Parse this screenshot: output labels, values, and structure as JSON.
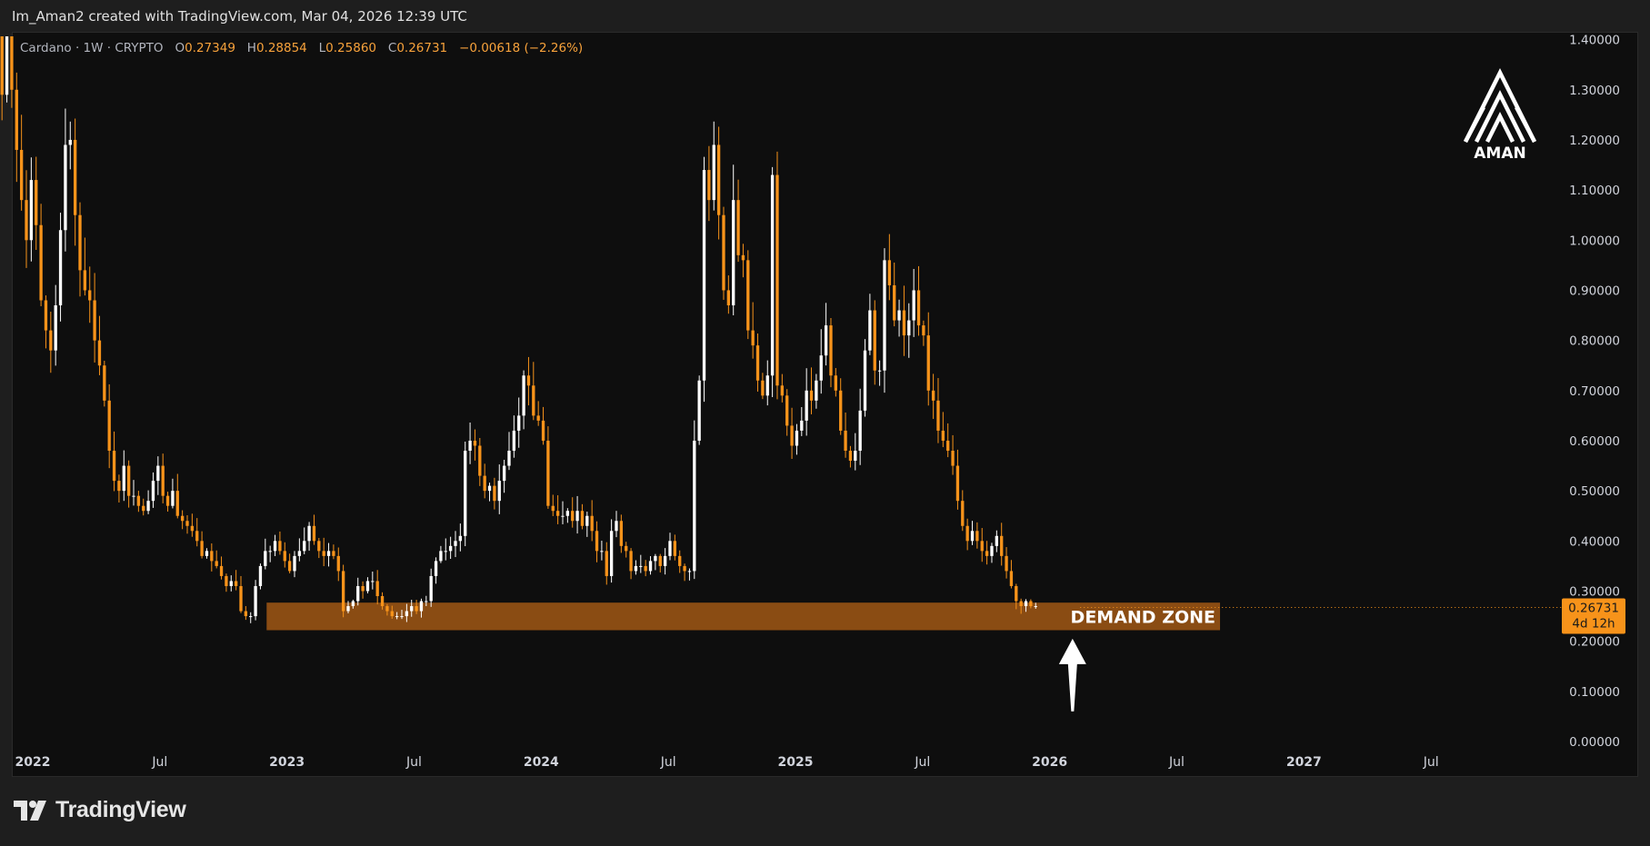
{
  "header": {
    "text": "Im_Aman2 created with TradingView.com, Mar 04, 2026 12:39 UTC"
  },
  "legend": {
    "symbol": "Cardano · 1W · CRYPTO",
    "o_label": "O",
    "o_value": "0.27349",
    "h_label": "H",
    "h_value": "0.28854",
    "l_label": "L",
    "l_value": "0.25860",
    "c_label": "C",
    "c_value": "0.26731",
    "change": "−0.00618 (−2.26%)"
  },
  "watermark": {
    "text": "AMAN"
  },
  "zone": {
    "label": "DEMAND ZONE",
    "low": 0.222,
    "high": 0.277,
    "start": 2022.92,
    "end": 2026.67
  },
  "arrow": {
    "x": 2026.09,
    "tip": 0.205,
    "tail": 0.06
  },
  "price_badge": {
    "price": "0.26731",
    "countdown": "4d 12h"
  },
  "footer": {
    "brand": "TradingView"
  },
  "colors": {
    "up": "#ffffff",
    "down": "#f7931a",
    "zone": "#8a4c13",
    "badge": "#f7931a",
    "background": "#0e0e0e"
  },
  "chart_data": {
    "type": "candlestick",
    "timeframe": "1W",
    "ylim": [
      0,
      1.45
    ],
    "xlim": [
      2021.95,
      2027.95
    ],
    "yticks": [
      "0.00000",
      "0.10000",
      "0.20000",
      "0.30000",
      "0.40000",
      "0.50000",
      "0.60000",
      "0.70000",
      "0.80000",
      "0.90000",
      "1.00000",
      "1.10000",
      "1.20000",
      "1.30000",
      "1.40000"
    ],
    "xticks": [
      {
        "t": 2022.0,
        "label": "2022",
        "major": true
      },
      {
        "t": 2022.5,
        "label": "Jul",
        "major": false
      },
      {
        "t": 2023.0,
        "label": "2023",
        "major": true
      },
      {
        "t": 2023.5,
        "label": "Jul",
        "major": false
      },
      {
        "t": 2024.0,
        "label": "2024",
        "major": true
      },
      {
        "t": 2024.5,
        "label": "Jul",
        "major": false
      },
      {
        "t": 2025.0,
        "label": "2025",
        "major": true
      },
      {
        "t": 2025.5,
        "label": "Jul",
        "major": false
      },
      {
        "t": 2026.0,
        "label": "2026",
        "major": true
      },
      {
        "t": 2026.5,
        "label": "Jul",
        "major": false
      },
      {
        "t": 2027.0,
        "label": "2027",
        "major": true
      },
      {
        "t": 2027.5,
        "label": "Jul",
        "major": false
      }
    ],
    "start": 2021.86,
    "week": 0.019178,
    "closes": [
      1.46,
      1.29,
      1.41,
      1.3,
      1.18,
      1.08,
      1.0,
      1.12,
      1.03,
      0.88,
      0.82,
      0.78,
      0.87,
      1.02,
      1.19,
      1.2,
      1.05,
      0.94,
      0.9,
      0.88,
      0.8,
      0.75,
      0.68,
      0.58,
      0.52,
      0.5,
      0.55,
      0.49,
      0.49,
      0.47,
      0.46,
      0.48,
      0.52,
      0.55,
      0.49,
      0.47,
      0.5,
      0.45,
      0.44,
      0.43,
      0.42,
      0.4,
      0.37,
      0.38,
      0.36,
      0.35,
      0.33,
      0.31,
      0.32,
      0.31,
      0.26,
      0.25,
      0.25,
      0.31,
      0.35,
      0.38,
      0.38,
      0.4,
      0.38,
      0.36,
      0.34,
      0.37,
      0.38,
      0.4,
      0.43,
      0.4,
      0.38,
      0.37,
      0.38,
      0.37,
      0.34,
      0.26,
      0.27,
      0.28,
      0.31,
      0.3,
      0.32,
      0.32,
      0.29,
      0.27,
      0.26,
      0.25,
      0.25,
      0.25,
      0.26,
      0.27,
      0.26,
      0.28,
      0.28,
      0.33,
      0.36,
      0.38,
      0.38,
      0.39,
      0.4,
      0.41,
      0.58,
      0.6,
      0.59,
      0.53,
      0.5,
      0.51,
      0.48,
      0.52,
      0.55,
      0.58,
      0.62,
      0.65,
      0.73,
      0.71,
      0.65,
      0.64,
      0.6,
      0.47,
      0.46,
      0.45,
      0.45,
      0.46,
      0.44,
      0.46,
      0.43,
      0.45,
      0.42,
      0.38,
      0.38,
      0.33,
      0.42,
      0.44,
      0.39,
      0.38,
      0.34,
      0.35,
      0.35,
      0.34,
      0.36,
      0.37,
      0.35,
      0.37,
      0.4,
      0.37,
      0.35,
      0.34,
      0.34,
      0.6,
      0.72,
      1.14,
      1.08,
      1.19,
      1.05,
      0.9,
      0.87,
      1.08,
      0.97,
      0.96,
      0.82,
      0.79,
      0.72,
      0.69,
      0.73,
      1.13,
      0.71,
      0.69,
      0.63,
      0.59,
      0.62,
      0.64,
      0.7,
      0.68,
      0.72,
      0.77,
      0.83,
      0.73,
      0.7,
      0.62,
      0.58,
      0.56,
      0.58,
      0.66,
      0.78,
      0.86,
      0.74,
      0.74,
      0.96,
      0.91,
      0.84,
      0.86,
      0.81,
      0.84,
      0.9,
      0.83,
      0.81,
      0.7,
      0.68,
      0.62,
      0.6,
      0.58,
      0.55,
      0.48,
      0.43,
      0.4,
      0.42,
      0.4,
      0.38,
      0.37,
      0.39,
      0.41,
      0.37,
      0.34,
      0.31,
      0.28,
      0.27,
      0.28,
      0.27,
      0.27
    ]
  }
}
